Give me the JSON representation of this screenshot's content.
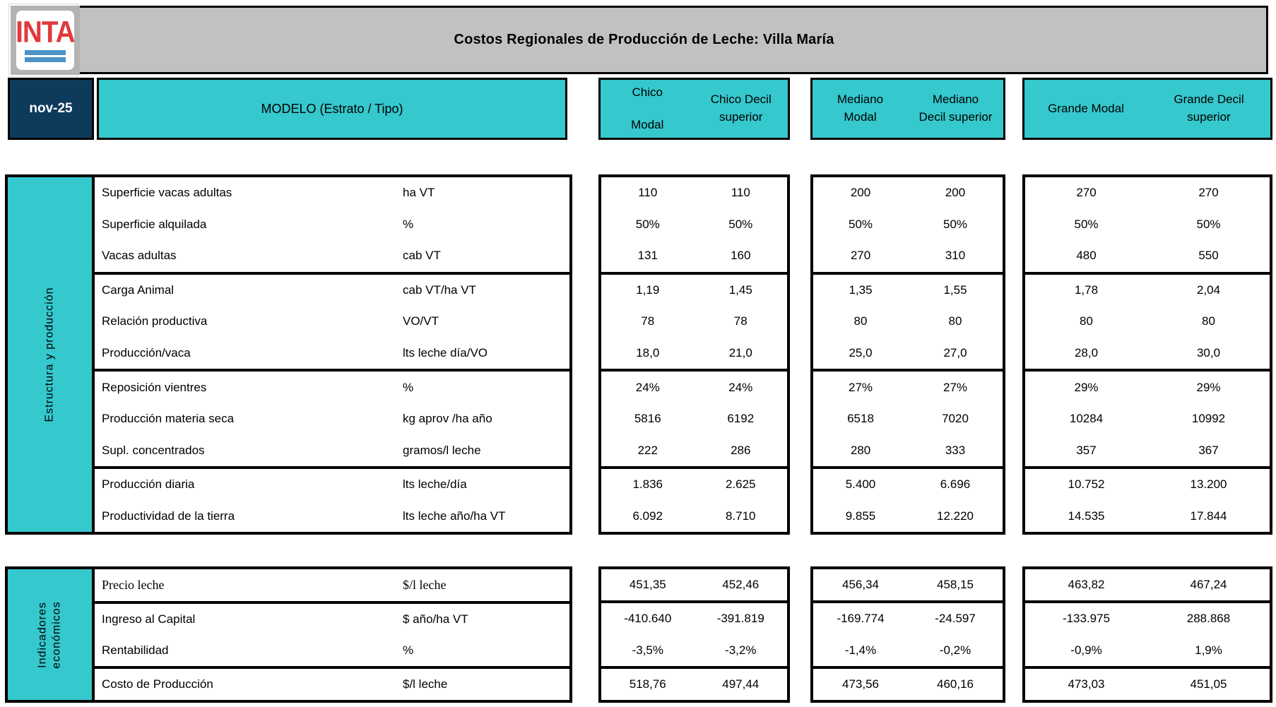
{
  "logo": {
    "text": "INTA"
  },
  "title": "Costos Regionales de Producción de Leche: Villa María",
  "period": "nov-25",
  "model_header": "MODELO (Estrato / Tipo)",
  "column_groups": [
    {
      "id": "chico",
      "cells": [
        {
          "lines": [
            "Chico",
            "Modal"
          ],
          "spread": true
        },
        {
          "lines": [
            "Chico Decil",
            "superior"
          ]
        }
      ]
    },
    {
      "id": "mediano",
      "cells": [
        {
          "lines": [
            "Mediano",
            "Modal"
          ]
        },
        {
          "lines": [
            "Mediano",
            "Decil superior"
          ]
        }
      ]
    },
    {
      "id": "grande",
      "cells": [
        {
          "lines": [
            "Grande Modal"
          ]
        },
        {
          "lines": [
            "Grande Decil",
            "superior"
          ]
        }
      ]
    }
  ],
  "sections": [
    {
      "sidebar_lines": [
        "Estructura y producción"
      ],
      "groups": [
        {
          "rows": [
            {
              "label": "Superficie vacas adultas",
              "unit": "ha VT",
              "values": [
                "110",
                "110",
                "200",
                "200",
                "270",
                "270"
              ]
            },
            {
              "label": "Superficie alquilada",
              "unit": "%",
              "values": [
                "50%",
                "50%",
                "50%",
                "50%",
                "50%",
                "50%"
              ]
            },
            {
              "label": "Vacas adultas",
              "unit": "cab VT",
              "values": [
                "131",
                "160",
                "270",
                "310",
                "480",
                "550"
              ]
            }
          ]
        },
        {
          "rows": [
            {
              "label": "Carga Animal",
              "unit": "cab VT/ha VT",
              "values": [
                "1,19",
                "1,45",
                "1,35",
                "1,55",
                "1,78",
                "2,04"
              ]
            },
            {
              "label": "Relación productiva",
              "unit": "VO/VT",
              "values": [
                "78",
                "78",
                "80",
                "80",
                "80",
                "80"
              ]
            },
            {
              "label": "Producción/vaca",
              "unit": "lts leche día/VO",
              "values": [
                "18,0",
                "21,0",
                "25,0",
                "27,0",
                "28,0",
                "30,0"
              ]
            }
          ]
        },
        {
          "rows": [
            {
              "label": "Reposición vientres",
              "unit": "%",
              "values": [
                "24%",
                "24%",
                "27%",
                "27%",
                "29%",
                "29%"
              ]
            },
            {
              "label": "Producción materia seca",
              "unit": "kg aprov /ha año",
              "values": [
                "5816",
                "6192",
                "6518",
                "7020",
                "10284",
                "10992"
              ]
            },
            {
              "label": "Supl. concentrados",
              "unit": "gramos/l leche",
              "values": [
                "222",
                "286",
                "280",
                "333",
                "357",
                "367"
              ]
            }
          ]
        },
        {
          "rows": [
            {
              "label": "Producción diaria",
              "unit": "lts leche/día",
              "values": [
                "1.836",
                "2.625",
                "5.400",
                "6.696",
                "10.752",
                "13.200"
              ]
            },
            {
              "label": "Productividad de la tierra",
              "unit": "lts leche año/ha VT",
              "values": [
                "6.092",
                "8.710",
                "9.855",
                "12.220",
                "14.535",
                "17.844"
              ]
            }
          ]
        }
      ]
    },
    {
      "sidebar_lines": [
        "Indicadores",
        "económicos"
      ],
      "groups": [
        {
          "rows": [
            {
              "label": "Precio leche",
              "unit": "$/l leche",
              "serif": true,
              "values": [
                "451,35",
                "452,46",
                "456,34",
                "458,15",
                "463,82",
                "467,24"
              ]
            }
          ]
        },
        {
          "rows": [
            {
              "label": "Ingreso al Capital",
              "unit": "$ año/ha VT",
              "values": [
                "-410.640",
                "-391.819",
                "-169.774",
                "-24.597",
                "-133.975",
                "288.868"
              ]
            },
            {
              "label": "Rentabilidad",
              "unit": "%",
              "values": [
                "-3,5%",
                "-3,2%",
                "-1,4%",
                "-0,2%",
                "-0,9%",
                "1,9%"
              ]
            }
          ]
        },
        {
          "rows": [
            {
              "label": "Costo de Producción",
              "unit": "$/l leche",
              "values": [
                "518,76",
                "497,44",
                "473,56",
                "460,16",
                "473,03",
                "451,05"
              ]
            }
          ]
        }
      ]
    }
  ],
  "colors": {
    "teal": "#35C8CD",
    "navy": "#0E3A5C",
    "banner_gray": "#C1C1C1",
    "logo_red": "#E03A3C",
    "logo_blue": "#4B92C8",
    "border": "#000000"
  }
}
